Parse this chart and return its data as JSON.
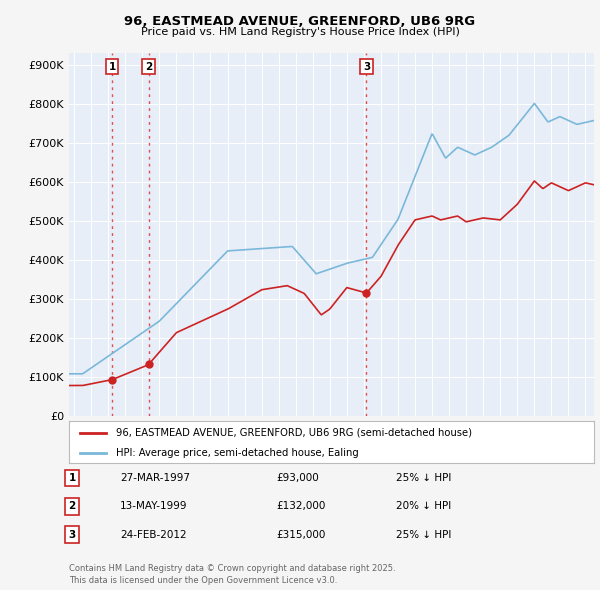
{
  "title": "96, EASTMEAD AVENUE, GREENFORD, UB6 9RG",
  "subtitle": "Price paid vs. HM Land Registry's House Price Index (HPI)",
  "ylabel_ticks": [
    "£0",
    "£100K",
    "£200K",
    "£300K",
    "£400K",
    "£500K",
    "£600K",
    "£700K",
    "£800K",
    "£900K"
  ],
  "ytick_values": [
    0,
    100000,
    200000,
    300000,
    400000,
    500000,
    600000,
    700000,
    800000,
    900000
  ],
  "ylim": [
    0,
    930000
  ],
  "xlim_start": 1994.7,
  "xlim_end": 2025.5,
  "hpi_color": "#7ab8d9",
  "price_color": "#cc2222",
  "transaction_color": "#cc2222",
  "legend_label_price": "96, EASTMEAD AVENUE, GREENFORD, UB6 9RG (semi-detached house)",
  "legend_label_hpi": "HPI: Average price, semi-detached house, Ealing",
  "transactions": [
    {
      "num": 1,
      "date_label": "27-MAR-1997",
      "price_label": "£93,000",
      "pct_label": "25% ↓ HPI",
      "year": 1997.23,
      "price": 93000
    },
    {
      "num": 2,
      "date_label": "13-MAY-1999",
      "price_label": "£132,000",
      "pct_label": "20% ↓ HPI",
      "year": 1999.37,
      "price": 132000
    },
    {
      "num": 3,
      "date_label": "24-FEB-2012",
      "price_label": "£315,000",
      "pct_label": "25% ↓ HPI",
      "year": 2012.15,
      "price": 315000
    }
  ],
  "footer_text": "Contains HM Land Registry data © Crown copyright and database right 2025.\nThis data is licensed under the Open Government Licence v3.0.",
  "background_color": "#f5f5f5",
  "plot_bg_color": "#e8eef8"
}
